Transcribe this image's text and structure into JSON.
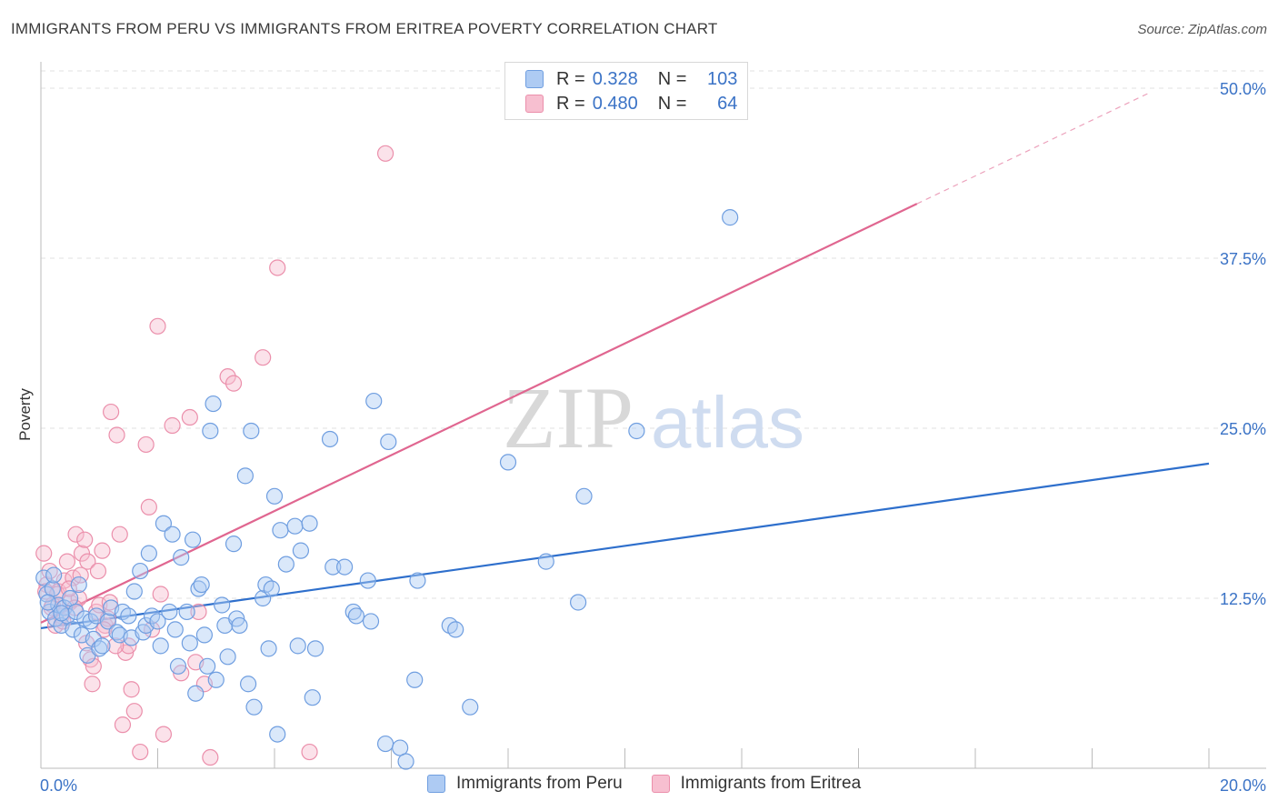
{
  "title": "IMMIGRANTS FROM PERU VS IMMIGRANTS FROM ERITREA POVERTY CORRELATION CHART",
  "source": "Source: ZipAtlas.com",
  "watermark": {
    "zip": "ZIP",
    "atlas": "atlas"
  },
  "legend": {
    "r_label": "R =",
    "n_label": "N =",
    "peru": {
      "r": "0.328",
      "n": "103"
    },
    "eritrea": {
      "r": "0.480",
      "n": "64"
    }
  },
  "colors": {
    "peru_fill": "#aecbf3",
    "peru_stroke": "#6f9ee0",
    "peru_line": "#2e6fcc",
    "eritrea_fill": "#f7bfd0",
    "eritrea_stroke": "#eb8fab",
    "eritrea_line": "#e06690"
  },
  "chart_data": {
    "type": "scatter",
    "title": "IMMIGRANTS FROM PERU VS IMMIGRANTS FROM ERITREA POVERTY CORRELATION CHART",
    "xlabel": "",
    "ylabel": "Poverty",
    "xlim": [
      0,
      20
    ],
    "ylim": [
      0,
      52
    ],
    "x_tick_labels": [
      {
        "value": 0,
        "label": "0.0%"
      },
      {
        "value": 20,
        "label": "20.0%"
      }
    ],
    "y_tick_labels": [
      {
        "value": 12.5,
        "label": "12.5%"
      },
      {
        "value": 25,
        "label": "25.0%"
      },
      {
        "value": 37.5,
        "label": "37.5%"
      },
      {
        "value": 50,
        "label": "50.0%"
      }
    ],
    "legend_position": "top-center",
    "series": [
      {
        "name": "Immigrants from Peru",
        "color": "#6f9ee0",
        "trend": {
          "x0": 0,
          "y0": 10.3,
          "x1": 20,
          "y1": 22.4
        },
        "points": [
          [
            0.05,
            14.0
          ],
          [
            0.1,
            12.8
          ],
          [
            0.15,
            11.5
          ],
          [
            0.2,
            13.2
          ],
          [
            0.25,
            11.0
          ],
          [
            0.3,
            12.0
          ],
          [
            0.35,
            10.5
          ],
          [
            0.4,
            11.8
          ],
          [
            0.45,
            11.2
          ],
          [
            0.5,
            12.5
          ],
          [
            0.55,
            10.2
          ],
          [
            0.6,
            11.5
          ],
          [
            0.65,
            13.5
          ],
          [
            0.7,
            9.8
          ],
          [
            0.75,
            11.0
          ],
          [
            0.8,
            8.3
          ],
          [
            0.85,
            10.8
          ],
          [
            0.9,
            9.5
          ],
          [
            0.95,
            11.2
          ],
          [
            1.0,
            8.8
          ],
          [
            1.05,
            9.0
          ],
          [
            1.15,
            10.8
          ],
          [
            1.2,
            11.8
          ],
          [
            1.3,
            10.0
          ],
          [
            1.35,
            9.8
          ],
          [
            1.4,
            11.5
          ],
          [
            1.5,
            11.2
          ],
          [
            1.55,
            9.6
          ],
          [
            1.6,
            13.0
          ],
          [
            1.7,
            14.5
          ],
          [
            1.75,
            10.0
          ],
          [
            1.8,
            10.5
          ],
          [
            1.85,
            15.8
          ],
          [
            1.9,
            11.2
          ],
          [
            2.0,
            10.8
          ],
          [
            2.05,
            9.0
          ],
          [
            2.1,
            18.0
          ],
          [
            2.2,
            11.5
          ],
          [
            2.25,
            17.2
          ],
          [
            2.3,
            10.2
          ],
          [
            2.35,
            7.5
          ],
          [
            2.4,
            15.5
          ],
          [
            2.5,
            11.5
          ],
          [
            2.55,
            9.2
          ],
          [
            2.6,
            16.8
          ],
          [
            2.65,
            5.5
          ],
          [
            2.7,
            13.2
          ],
          [
            2.75,
            13.5
          ],
          [
            2.8,
            9.8
          ],
          [
            2.85,
            7.5
          ],
          [
            2.9,
            24.8
          ],
          [
            2.95,
            26.8
          ],
          [
            3.0,
            6.5
          ],
          [
            3.1,
            12.0
          ],
          [
            3.15,
            10.5
          ],
          [
            3.2,
            8.2
          ],
          [
            3.3,
            16.5
          ],
          [
            3.35,
            11.0
          ],
          [
            3.4,
            10.5
          ],
          [
            3.5,
            21.5
          ],
          [
            3.55,
            6.2
          ],
          [
            3.6,
            24.8
          ],
          [
            3.65,
            4.5
          ],
          [
            3.8,
            12.5
          ],
          [
            3.85,
            13.5
          ],
          [
            3.9,
            8.8
          ],
          [
            3.95,
            13.2
          ],
          [
            4.0,
            20.0
          ],
          [
            4.05,
            2.5
          ],
          [
            4.1,
            17.5
          ],
          [
            4.2,
            15.0
          ],
          [
            4.35,
            17.8
          ],
          [
            4.4,
            9.0
          ],
          [
            4.45,
            16.0
          ],
          [
            4.6,
            18.0
          ],
          [
            4.65,
            5.2
          ],
          [
            4.7,
            8.8
          ],
          [
            4.95,
            24.2
          ],
          [
            5.0,
            14.8
          ],
          [
            5.2,
            14.8
          ],
          [
            5.35,
            11.5
          ],
          [
            5.4,
            11.2
          ],
          [
            5.6,
            13.8
          ],
          [
            5.65,
            10.8
          ],
          [
            5.7,
            27.0
          ],
          [
            5.9,
            1.8
          ],
          [
            5.95,
            24.0
          ],
          [
            6.15,
            1.5
          ],
          [
            6.25,
            0.5
          ],
          [
            6.4,
            6.5
          ],
          [
            6.45,
            13.8
          ],
          [
            7.0,
            10.5
          ],
          [
            7.1,
            10.2
          ],
          [
            7.35,
            4.5
          ],
          [
            8.0,
            22.5
          ],
          [
            8.65,
            15.2
          ],
          [
            9.2,
            12.2
          ],
          [
            9.3,
            20.0
          ],
          [
            10.2,
            24.8
          ],
          [
            11.8,
            40.5
          ],
          [
            0.12,
            12.2
          ],
          [
            0.22,
            14.2
          ],
          [
            0.35,
            11.4
          ]
        ]
      },
      {
        "name": "Immigrants from Eritrea",
        "color": "#eb8fab",
        "trend": {
          "x0": 0,
          "y0": 10.7,
          "x1": 15.0,
          "y1": 41.5,
          "dash_to_x": 19.0,
          "dash_to_y": 49.7
        },
        "points": [
          [
            0.05,
            15.8
          ],
          [
            0.1,
            13.5
          ],
          [
            0.15,
            14.5
          ],
          [
            0.2,
            12.0
          ],
          [
            0.25,
            10.5
          ],
          [
            0.3,
            13.0
          ],
          [
            0.35,
            11.2
          ],
          [
            0.4,
            13.8
          ],
          [
            0.45,
            15.2
          ],
          [
            0.5,
            12.2
          ],
          [
            0.55,
            14.0
          ],
          [
            0.6,
            17.2
          ],
          [
            0.65,
            12.5
          ],
          [
            0.7,
            15.8
          ],
          [
            0.75,
            16.8
          ],
          [
            0.8,
            15.2
          ],
          [
            0.85,
            8.0
          ],
          [
            0.9,
            7.5
          ],
          [
            0.95,
            11.5
          ],
          [
            1.0,
            12.0
          ],
          [
            1.05,
            16.0
          ],
          [
            1.1,
            10.5
          ],
          [
            1.15,
            11.0
          ],
          [
            1.2,
            26.2
          ],
          [
            1.3,
            24.5
          ],
          [
            1.35,
            17.2
          ],
          [
            1.4,
            3.2
          ],
          [
            1.45,
            8.5
          ],
          [
            1.5,
            9.0
          ],
          [
            1.55,
            5.8
          ],
          [
            1.6,
            4.2
          ],
          [
            1.7,
            1.2
          ],
          [
            1.8,
            23.8
          ],
          [
            1.85,
            19.2
          ],
          [
            1.9,
            10.2
          ],
          [
            2.0,
            32.5
          ],
          [
            2.05,
            12.8
          ],
          [
            2.1,
            2.5
          ],
          [
            2.25,
            25.2
          ],
          [
            2.4,
            7.0
          ],
          [
            2.55,
            25.8
          ],
          [
            2.65,
            7.8
          ],
          [
            2.7,
            11.5
          ],
          [
            2.8,
            6.2
          ],
          [
            2.9,
            0.8
          ],
          [
            3.2,
            28.8
          ],
          [
            3.3,
            28.3
          ],
          [
            3.8,
            30.2
          ],
          [
            4.05,
            36.8
          ],
          [
            4.6,
            1.2
          ],
          [
            5.9,
            45.2
          ],
          [
            0.08,
            13.0
          ],
          [
            0.18,
            11.8
          ],
          [
            0.28,
            12.8
          ],
          [
            0.38,
            10.8
          ],
          [
            0.48,
            13.2
          ],
          [
            0.58,
            11.8
          ],
          [
            0.68,
            14.2
          ],
          [
            0.78,
            9.2
          ],
          [
            0.88,
            6.2
          ],
          [
            0.98,
            14.5
          ],
          [
            1.08,
            10.2
          ],
          [
            1.18,
            12.2
          ],
          [
            1.28,
            9.0
          ]
        ]
      }
    ]
  },
  "bottom_legend": {
    "peru": "Immigrants from Peru",
    "eritrea": "Immigrants from Eritrea"
  }
}
